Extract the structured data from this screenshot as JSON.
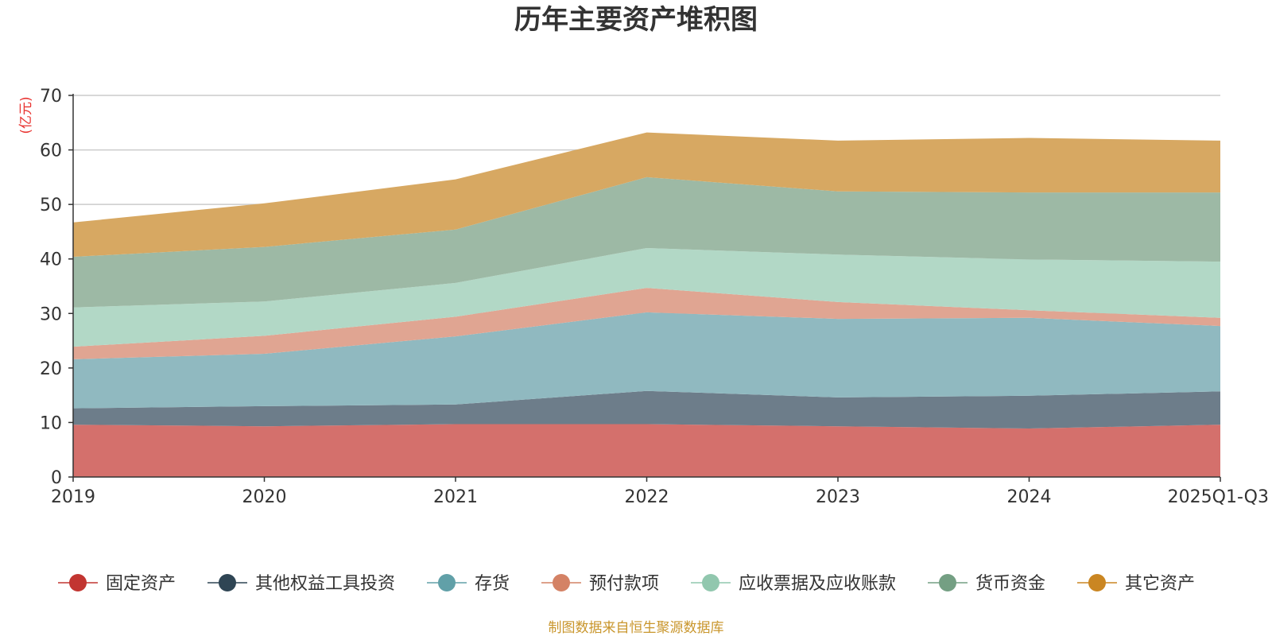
{
  "chart_data": {
    "type": "area",
    "stacked": true,
    "title": "历年主要资产堆积图",
    "ylabel": "(亿元)",
    "xlabel": "",
    "ylim": [
      0,
      70
    ],
    "yticks": [
      0,
      10,
      20,
      30,
      40,
      50,
      60,
      70
    ],
    "categories": [
      "2019",
      "2020",
      "2021",
      "2022",
      "2023",
      "2024",
      "2025Q1-Q3"
    ],
    "series": [
      {
        "name": "固定资产",
        "color": "#c23531",
        "fill": "#d4706c",
        "values": [
          9.6,
          9.3,
          9.7,
          9.7,
          9.3,
          8.9,
          9.6
        ]
      },
      {
        "name": "其他权益工具投资",
        "color": "#2f4554",
        "fill": "#6d7d8a",
        "values": [
          3.0,
          3.7,
          3.6,
          6.1,
          5.3,
          6.0,
          6.1
        ]
      },
      {
        "name": "存货",
        "color": "#61a0a8",
        "fill": "#90b9c0",
        "values": [
          9.0,
          9.6,
          12.5,
          14.4,
          14.4,
          14.3,
          12.0
        ]
      },
      {
        "name": "预付款项",
        "color": "#d48265",
        "fill": "#e0a592",
        "values": [
          2.3,
          3.3,
          3.6,
          4.5,
          3.1,
          1.4,
          1.5
        ]
      },
      {
        "name": "应收票据及应收账款",
        "color": "#91c7ae",
        "fill": "#b2d8c6",
        "values": [
          7.2,
          6.3,
          6.2,
          7.3,
          8.7,
          9.3,
          10.3
        ]
      },
      {
        "name": "货币资金",
        "color": "#749f83",
        "fill": "#9db9a5",
        "values": [
          9.3,
          10.0,
          9.8,
          13.0,
          11.6,
          12.3,
          12.7
        ]
      },
      {
        "name": "其它资产",
        "color": "#ca8622",
        "fill": "#d7a862",
        "values": [
          6.3,
          8.0,
          9.2,
          8.2,
          9.3,
          10.0,
          9.5
        ]
      }
    ],
    "legend_position": "bottom",
    "grid": true
  },
  "source_note": "制图数据来自恒生聚源数据库"
}
